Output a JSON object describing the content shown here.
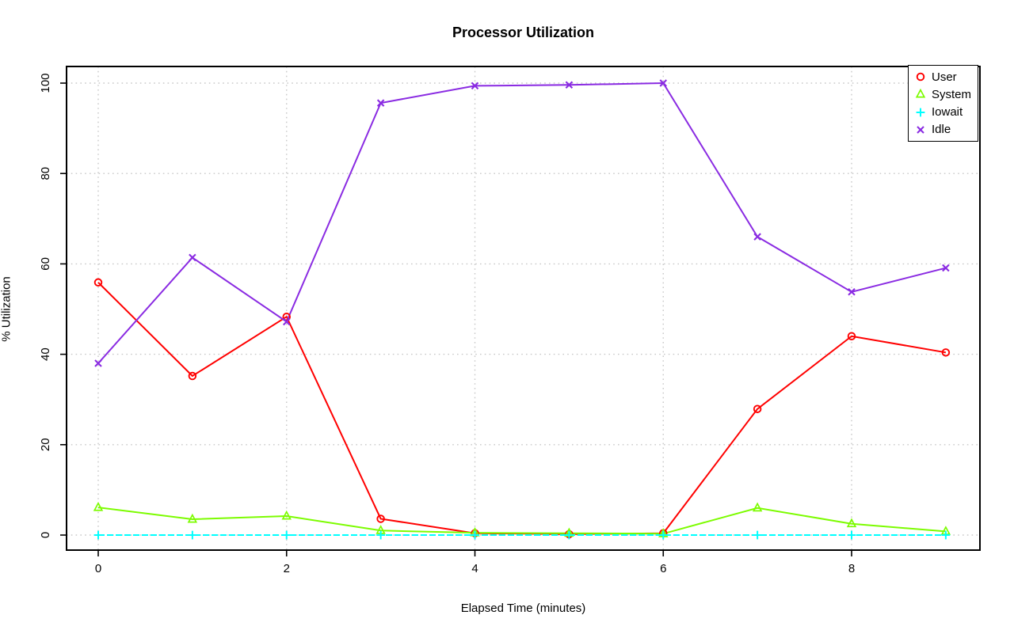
{
  "chart_data": {
    "type": "line",
    "title": "Processor Utilization",
    "xlabel": "Elapsed Time (minutes)",
    "ylabel": "% Utilization",
    "x": [
      0,
      1,
      2,
      3,
      4,
      5,
      6,
      7,
      8,
      9
    ],
    "x_ticks": [
      0,
      2,
      4,
      6,
      8
    ],
    "y_ticks": [
      0,
      20,
      40,
      60,
      80,
      100
    ],
    "xlim": [
      0,
      9
    ],
    "ylim": [
      0,
      100
    ],
    "grid": "dotted",
    "grid_color": "#c8c8c8",
    "axis_color": "#000000",
    "legend_position": "top-right",
    "series": [
      {
        "name": "User",
        "color": "#ff0000",
        "marker": "circle",
        "values": [
          55.9,
          35.2,
          48.3,
          3.6,
          0.4,
          0.2,
          0.4,
          27.9,
          44.0,
          40.4
        ]
      },
      {
        "name": "System",
        "color": "#7cfc00",
        "marker": "triangle",
        "values": [
          6.1,
          3.5,
          4.2,
          1.0,
          0.5,
          0.4,
          0.3,
          6.0,
          2.5,
          0.8
        ]
      },
      {
        "name": "Iowait",
        "color": "#00ffff",
        "marker": "plus",
        "values": [
          0,
          0,
          0,
          0,
          0,
          0,
          0,
          0,
          0,
          0
        ]
      },
      {
        "name": "Idle",
        "color": "#8a2be2",
        "marker": "x",
        "values": [
          38.0,
          61.4,
          47.2,
          95.6,
          99.4,
          99.6,
          100.0,
          66.0,
          53.8,
          59.1
        ]
      }
    ]
  }
}
